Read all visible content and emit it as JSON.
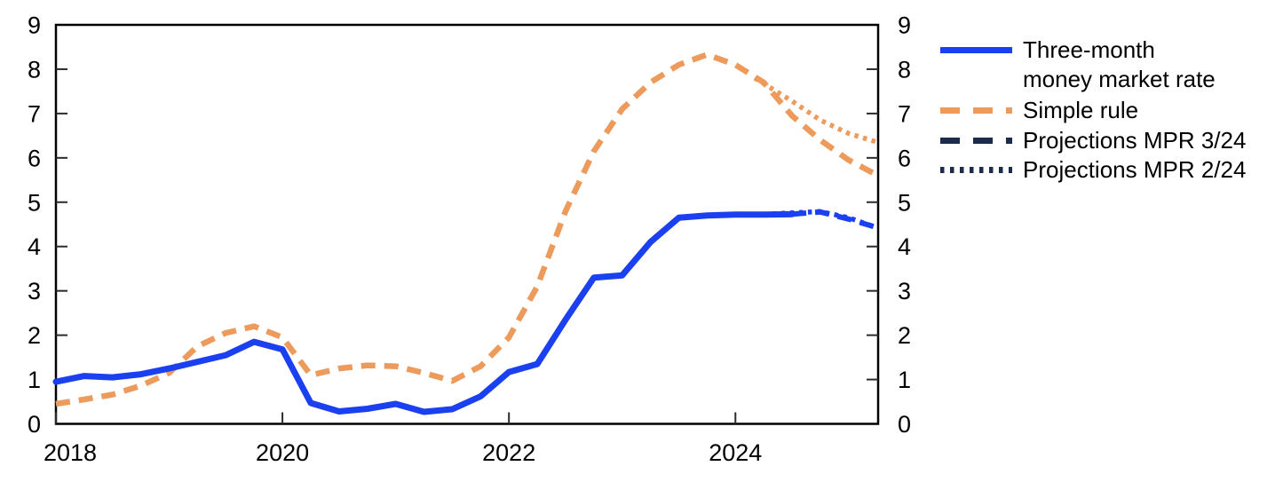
{
  "chart_data": {
    "type": "line",
    "title": "",
    "xlabel": "",
    "ylabel": "",
    "xlim": [
      2018,
      2025.26
    ],
    "ylim": [
      0,
      9
    ],
    "x_ticks": [
      2018,
      2020,
      2022,
      2024
    ],
    "y_ticks": [
      0,
      1,
      2,
      3,
      4,
      5,
      6,
      7,
      8,
      9
    ],
    "y_axis_both_sides": true,
    "grid": false,
    "legend_position": "right-outside",
    "series": [
      {
        "name": "Simple rule projection MPR 2/24",
        "style": "dotted",
        "color": "#ED9B5D",
        "width": 5.5,
        "points": [
          [
            2024.17,
            7.8
          ],
          [
            2024.5,
            7.28
          ],
          [
            2024.75,
            6.85
          ],
          [
            2025.0,
            6.55
          ],
          [
            2025.26,
            6.35
          ]
        ]
      },
      {
        "name": "Simple rule (incl. projection MPR 3/24)",
        "style": "dashed",
        "color": "#ED9B5D",
        "width": 6.5,
        "points": [
          [
            2018.0,
            0.45
          ],
          [
            2018.25,
            0.55
          ],
          [
            2018.5,
            0.66
          ],
          [
            2018.75,
            0.86
          ],
          [
            2019.0,
            1.15
          ],
          [
            2019.25,
            1.75
          ],
          [
            2019.5,
            2.05
          ],
          [
            2019.75,
            2.2
          ],
          [
            2020.0,
            1.95
          ],
          [
            2020.25,
            1.1
          ],
          [
            2020.5,
            1.25
          ],
          [
            2020.75,
            1.32
          ],
          [
            2021.0,
            1.3
          ],
          [
            2021.25,
            1.15
          ],
          [
            2021.5,
            0.97
          ],
          [
            2021.75,
            1.3
          ],
          [
            2022.0,
            1.95
          ],
          [
            2022.25,
            3.1
          ],
          [
            2022.5,
            4.8
          ],
          [
            2022.75,
            6.15
          ],
          [
            2023.0,
            7.1
          ],
          [
            2023.25,
            7.7
          ],
          [
            2023.5,
            8.1
          ],
          [
            2023.75,
            8.33
          ],
          [
            2024.0,
            8.1
          ],
          [
            2024.25,
            7.7
          ],
          [
            2024.5,
            6.95
          ],
          [
            2024.75,
            6.4
          ],
          [
            2025.0,
            5.95
          ],
          [
            2025.26,
            5.6
          ]
        ]
      },
      {
        "name": "Money market rate projection MPR 2/24",
        "style": "dotted",
        "color": "#1A40F0",
        "width": 5.5,
        "points": [
          [
            2024.17,
            4.72
          ],
          [
            2024.5,
            4.76
          ],
          [
            2024.75,
            4.79
          ],
          [
            2025.0,
            4.65
          ],
          [
            2025.2,
            4.47
          ]
        ]
      },
      {
        "name": "Money market rate projection MPR 3/24",
        "style": "dashed",
        "color": "#1A40F0",
        "width": 6,
        "points": [
          [
            2024.5,
            4.73
          ],
          [
            2024.75,
            4.78
          ],
          [
            2025.0,
            4.62
          ],
          [
            2025.26,
            4.42
          ]
        ]
      },
      {
        "name": "Three-month money market rate",
        "style": "solid",
        "color": "#1A40F0",
        "width": 7,
        "points": [
          [
            2018.0,
            0.95
          ],
          [
            2018.25,
            1.08
          ],
          [
            2018.5,
            1.05
          ],
          [
            2018.75,
            1.12
          ],
          [
            2019.0,
            1.25
          ],
          [
            2019.25,
            1.4
          ],
          [
            2019.5,
            1.55
          ],
          [
            2019.75,
            1.85
          ],
          [
            2020.0,
            1.68
          ],
          [
            2020.25,
            0.47
          ],
          [
            2020.5,
            0.28
          ],
          [
            2020.75,
            0.34
          ],
          [
            2021.0,
            0.45
          ],
          [
            2021.25,
            0.27
          ],
          [
            2021.5,
            0.33
          ],
          [
            2021.75,
            0.62
          ],
          [
            2022.0,
            1.17
          ],
          [
            2022.25,
            1.35
          ],
          [
            2022.5,
            2.35
          ],
          [
            2022.75,
            3.3
          ],
          [
            2023.0,
            3.35
          ],
          [
            2023.25,
            4.1
          ],
          [
            2023.5,
            4.65
          ],
          [
            2023.75,
            4.7
          ],
          [
            2024.0,
            4.72
          ],
          [
            2024.25,
            4.72
          ],
          [
            2024.5,
            4.73
          ]
        ]
      }
    ],
    "legend": {
      "items": [
        {
          "lines": [
            "Three-month",
            "money market rate"
          ],
          "style": "solid",
          "color": "#1A40F0"
        },
        {
          "lines": [
            "Simple rule"
          ],
          "style": "dashed",
          "color": "#ED9B5D"
        },
        {
          "lines": [
            "Projections MPR 3/24"
          ],
          "style": "dashed",
          "color": "#1C2B4A"
        },
        {
          "lines": [
            "Projections MPR 2/24"
          ],
          "style": "dotted",
          "color": "#1C2B4A"
        }
      ]
    }
  },
  "colors": {
    "money_market_blue": "#1A40F0",
    "simple_rule_orange": "#ED9B5D",
    "projection_navy": "#1C2B4A",
    "axis": "#000000",
    "tick": "#2B2B2B",
    "background": "#FFFFFF"
  }
}
